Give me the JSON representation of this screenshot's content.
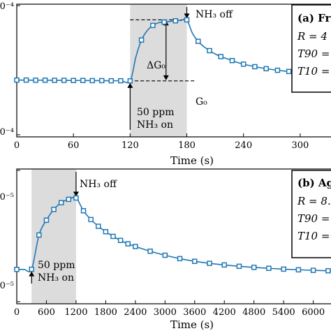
{
  "chart_data": [
    {
      "type": "line",
      "panel_label": "(a) Fr",
      "legend_lines": [
        "R = 4",
        "T90 =",
        "T10 ="
      ],
      "xlabel": "Time (s)",
      "x_ticks": [
        0,
        60,
        120,
        180,
        240,
        300
      ],
      "xlim": [
        0,
        340
      ],
      "y_tick_labels": [
        "0⁻⁴",
        "0⁻⁴"
      ],
      "ylim": [
        0,
        1
      ],
      "series_color": "#1f77b4",
      "shaded_interval": [
        120,
        180
      ],
      "annotations": {
        "off": "NH₃ off",
        "on_line1": "50 ppm",
        "on_line2": "NH₃ on",
        "delta": "ΔG₀",
        "g0": "G₀"
      },
      "points": {
        "x": [
          0,
          10,
          20,
          30,
          40,
          50,
          60,
          70,
          80,
          90,
          100,
          110,
          120,
          126,
          132,
          138,
          144,
          150,
          156,
          162,
          168,
          174,
          180,
          186,
          192,
          198,
          204,
          210,
          216,
          222,
          228,
          234,
          240,
          246,
          252,
          258,
          264,
          270,
          276,
          282,
          288,
          294,
          300,
          306,
          312,
          318,
          324,
          330,
          336
        ],
        "y": [
          0.428,
          0.428,
          0.427,
          0.427,
          0.426,
          0.426,
          0.425,
          0.425,
          0.424,
          0.424,
          0.423,
          0.423,
          0.422,
          0.6,
          0.73,
          0.8,
          0.84,
          0.86,
          0.865,
          0.87,
          0.875,
          0.878,
          0.882,
          0.78,
          0.72,
          0.68,
          0.65,
          0.625,
          0.605,
          0.59,
          0.575,
          0.56,
          0.548,
          0.538,
          0.529,
          0.521,
          0.514,
          0.508,
          0.502,
          0.497,
          0.493,
          0.489,
          0.485,
          0.482,
          0.479,
          0.476,
          0.474,
          0.472,
          0.47
        ]
      },
      "markers_x": [
        0,
        10,
        20,
        30,
        40,
        50,
        60,
        70,
        80,
        90,
        100,
        110,
        120,
        132,
        144,
        156,
        168,
        180,
        192,
        204,
        216,
        228,
        240,
        252,
        264,
        276,
        288,
        300,
        312,
        324,
        336
      ]
    },
    {
      "type": "line",
      "panel_label": "(b) Ag",
      "legend_lines": [
        "R = 8.3",
        "T90 =",
        "T10 ="
      ],
      "xlabel": "Time (s)",
      "x_ticks": [
        0,
        600,
        1200,
        1800,
        2400,
        3000,
        3600,
        4200,
        4800,
        5400,
        6000
      ],
      "xlim": [
        0,
        6500
      ],
      "y_tick_labels": [
        "0⁻⁵",
        "0⁻⁵"
      ],
      "ylim": [
        0,
        1
      ],
      "series_color": "#1f77b4",
      "shaded_interval": [
        300,
        1200
      ],
      "annotations": {
        "off": "NH₃ off",
        "on_line1": "50 ppm",
        "on_line2": "NH₃ on"
      },
      "points": {
        "x": [
          0,
          150,
          300,
          450,
          600,
          750,
          900,
          1050,
          1200,
          1350,
          1500,
          1650,
          1800,
          1950,
          2100,
          2250,
          2400,
          2700,
          3000,
          3300,
          3600,
          3900,
          4200,
          4500,
          4800,
          5100,
          5400,
          5700,
          6000,
          6300,
          6500
        ],
        "y": [
          0.255,
          0.255,
          0.256,
          0.51,
          0.62,
          0.7,
          0.75,
          0.775,
          0.785,
          0.69,
          0.625,
          0.575,
          0.535,
          0.5,
          0.47,
          0.445,
          0.425,
          0.39,
          0.36,
          0.335,
          0.315,
          0.3,
          0.288,
          0.278,
          0.27,
          0.263,
          0.257,
          0.252,
          0.248,
          0.245,
          0.243
        ]
      },
      "markers_x": [
        0,
        300,
        450,
        600,
        750,
        900,
        1050,
        1200,
        1350,
        1500,
        1650,
        1800,
        1950,
        2100,
        2250,
        2400,
        2700,
        3000,
        3300,
        3600,
        3900,
        4200,
        4500,
        4800,
        5100,
        5400,
        5700,
        6000,
        6300
      ]
    }
  ]
}
